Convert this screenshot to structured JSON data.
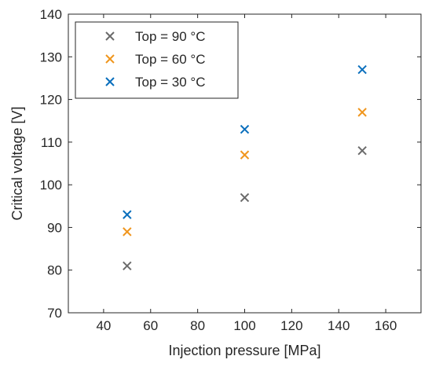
{
  "chart_data": {
    "type": "scatter",
    "title": "",
    "xlabel": "Injection pressure [MPa]",
    "ylabel": "Critical voltage [V]",
    "xlim": [
      25,
      175
    ],
    "ylim": [
      70,
      140
    ],
    "xticks": [
      40,
      60,
      80,
      100,
      120,
      140,
      160
    ],
    "yticks": [
      70,
      80,
      90,
      100,
      110,
      120,
      130,
      140
    ],
    "grid": false,
    "legend_position": "top-left",
    "marker": "x",
    "series": [
      {
        "name": "Top = 90 °C",
        "color": "#6b6b6b",
        "x": [
          50,
          100,
          150
        ],
        "y": [
          81,
          97,
          108
        ]
      },
      {
        "name": "Top = 60 °C",
        "color": "#f0961e",
        "x": [
          50,
          100,
          150
        ],
        "y": [
          89,
          107,
          117
        ]
      },
      {
        "name": "Top = 30 °C",
        "color": "#0a6fbd",
        "x": [
          50,
          100,
          150
        ],
        "y": [
          93,
          113,
          127
        ]
      }
    ]
  }
}
